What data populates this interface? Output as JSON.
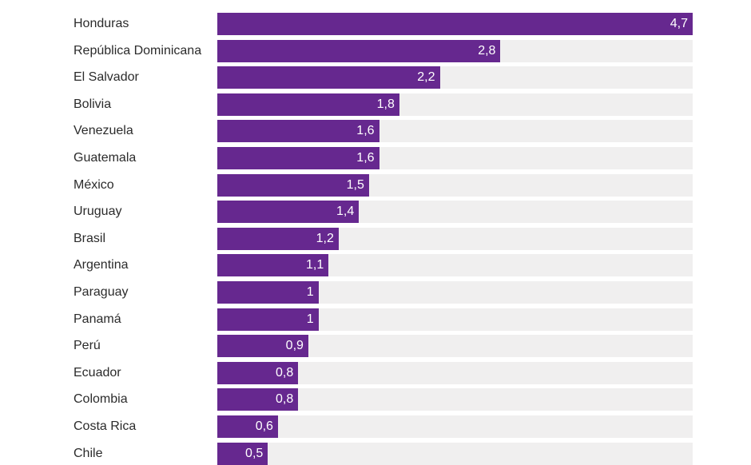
{
  "chart_data": {
    "type": "bar",
    "orientation": "horizontal",
    "categories": [
      "Honduras",
      "República Dominicana",
      "El Salvador",
      "Bolivia",
      "Venezuela",
      "Guatemala",
      "México",
      "Uruguay",
      "Brasil",
      "Argentina",
      "Paraguay",
      "Panamá",
      "Perú",
      "Ecuador",
      "Colombia",
      "Costa Rica",
      "Chile"
    ],
    "values": [
      4.7,
      2.8,
      2.2,
      1.8,
      1.6,
      1.6,
      1.5,
      1.4,
      1.2,
      1.1,
      1,
      1,
      0.9,
      0.8,
      0.8,
      0.6,
      0.5
    ],
    "value_labels": [
      "4,7",
      "2,8",
      "2,2",
      "1,8",
      "1,6",
      "1,6",
      "1,5",
      "1,4",
      "1,2",
      "1,1",
      "1",
      "1",
      "0,9",
      "0,8",
      "0,8",
      "0,6",
      "0,5"
    ],
    "xlim": [
      0,
      4.7
    ],
    "title": "",
    "xlabel": "",
    "ylabel": "",
    "grid": false,
    "legend": "none",
    "colors": {
      "bar": "#66288f",
      "track": "#f0efef",
      "category_text": "#2b2b2b",
      "value_text": "#ffffff"
    }
  }
}
